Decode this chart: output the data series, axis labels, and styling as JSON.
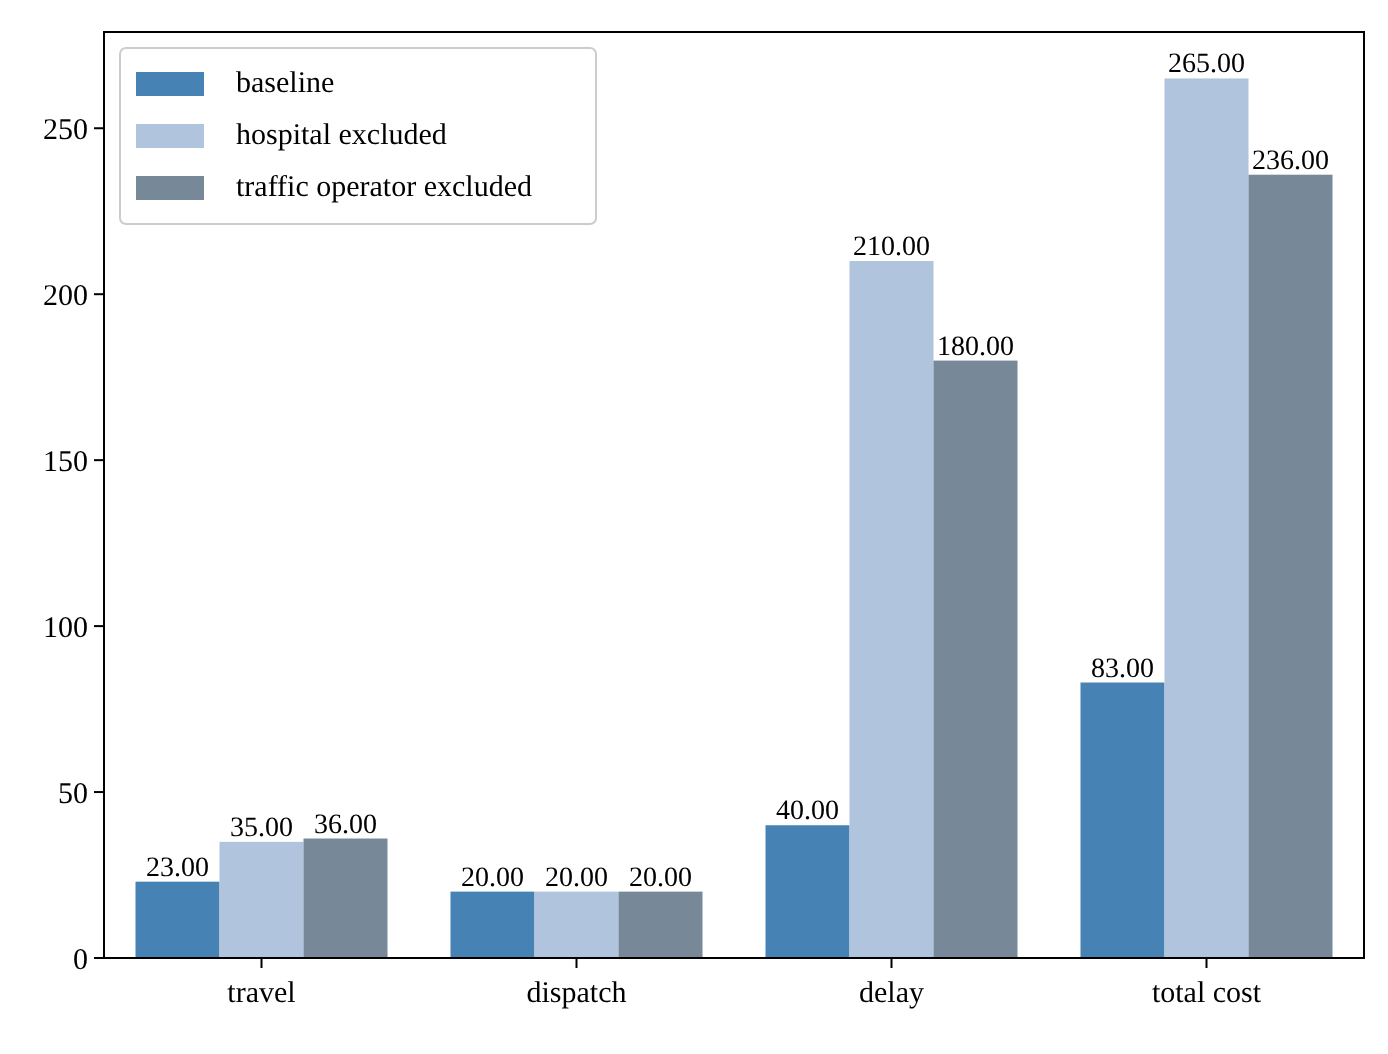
{
  "chart_data": {
    "type": "bar",
    "categories": [
      "travel",
      "dispatch",
      "delay",
      "total cost"
    ],
    "series": [
      {
        "name": "baseline",
        "color": "#4682b4",
        "values": [
          23,
          20,
          40,
          83
        ],
        "value_labels": [
          "23.00",
          "20.00",
          "40.00",
          "83.00"
        ]
      },
      {
        "name": "hospital excluded",
        "color": "#b0c4de",
        "values": [
          35,
          20,
          210,
          265
        ],
        "value_labels": [
          "35.00",
          "20.00",
          "210.00",
          "265.00"
        ]
      },
      {
        "name": "traffic operator excluded",
        "color": "#778899",
        "values": [
          36,
          20,
          180,
          236
        ],
        "value_labels": [
          "36.00",
          "20.00",
          "180.00",
          "236.00"
        ]
      }
    ],
    "ylim": [
      0,
      279
    ],
    "yticks": [
      0,
      50,
      100,
      150,
      200,
      250
    ],
    "legend": "top left",
    "grid": false
  }
}
